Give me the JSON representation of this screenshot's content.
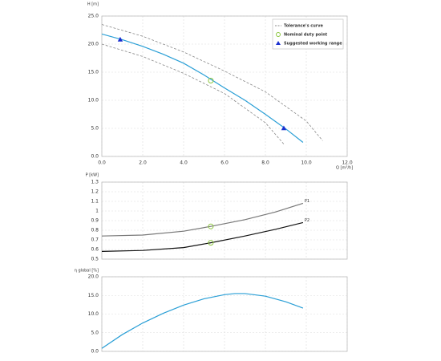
{
  "chart_data": [
    {
      "type": "line",
      "xlabel": "Q [m³/h]",
      "ylabel": "H [m]",
      "legend": "upper right",
      "grid": true,
      "xlim": [
        0,
        12
      ],
      "ylim": [
        0,
        25
      ],
      "xticks": [
        {
          "value": 0,
          "label": "0.0"
        },
        {
          "value": 2,
          "label": "2.0"
        },
        {
          "value": 4,
          "label": "4.0"
        },
        {
          "value": 6,
          "label": "6.0"
        },
        {
          "value": 8,
          "label": "8.0"
        },
        {
          "value": 10,
          "label": "10.0"
        },
        {
          "value": 12,
          "label": "12.0"
        }
      ],
      "yticks": [
        {
          "value": 0,
          "label": "0.0"
        },
        {
          "value": 5,
          "label": "5.0"
        },
        {
          "value": 10,
          "label": "10.0"
        },
        {
          "value": 15,
          "label": "15.0"
        },
        {
          "value": 20,
          "label": "20.0"
        },
        {
          "value": 25,
          "label": "25.0"
        }
      ],
      "series": [
        {
          "name": "Tolerance's curve",
          "color": "#888888",
          "style": "dashed",
          "x": [
            0,
            2,
            4,
            6,
            8,
            10,
            10.8
          ],
          "values": [
            23.5,
            21.4,
            18.6,
            15.2,
            11.5,
            6.3,
            2.8
          ]
        },
        {
          "color": "#888888",
          "style": "dashed",
          "x": [
            0,
            2,
            4,
            6,
            8,
            8.9
          ],
          "values": [
            20.0,
            17.8,
            14.8,
            11.2,
            6.0,
            2.2
          ]
        },
        {
          "color": "#2a9fd6",
          "style": "solid",
          "x": [
            0,
            1,
            2,
            3,
            4,
            5,
            6,
            7,
            8,
            9,
            9.84
          ],
          "values": [
            21.8,
            20.8,
            19.6,
            18.2,
            16.6,
            14.5,
            12.2,
            10.0,
            7.5,
            4.9,
            2.5
          ]
        },
        {
          "name": "Nominal duty point",
          "color": "#8cc63f",
          "style": "circle",
          "x": [
            5.33
          ],
          "values": [
            13.5
          ]
        },
        {
          "name": "Suggested working range",
          "color": "#1a2fcf",
          "style": "triangle",
          "x": [
            0.9,
            8.9
          ],
          "values": [
            20.8,
            5.0
          ]
        }
      ]
    },
    {
      "type": "line",
      "ylabel": "P [kW]",
      "grid": true,
      "xlim": [
        0,
        12
      ],
      "ylim": [
        0.5,
        1.3
      ],
      "yticks": [
        0.5,
        0.6,
        0.7,
        0.8,
        0.9,
        1.0,
        1.1,
        1.2,
        1.3
      ],
      "series": [
        {
          "name": "P1",
          "color": "#777777",
          "style": "solid",
          "x": [
            0,
            2,
            4,
            5.33,
            7,
            8.5,
            9.84
          ],
          "values": [
            0.74,
            0.75,
            0.79,
            0.84,
            0.91,
            0.99,
            1.08
          ]
        },
        {
          "name": "P2",
          "color": "#111111",
          "style": "solid",
          "x": [
            0,
            2,
            4,
            5.33,
            7,
            8.5,
            9.84
          ],
          "values": [
            0.58,
            0.59,
            0.62,
            0.67,
            0.74,
            0.81,
            0.88
          ]
        },
        {
          "color": "#8cc63f",
          "style": "circle",
          "x": [
            5.33,
            5.33
          ],
          "values": [
            0.84,
            0.67
          ]
        }
      ]
    },
    {
      "type": "line",
      "ylabel": "η global [%]",
      "grid": true,
      "xlim": [
        0,
        12
      ],
      "ylim": [
        0,
        20
      ],
      "yticks": [
        {
          "value": 0,
          "label": "0.0"
        },
        {
          "value": 5,
          "label": "5.0"
        },
        {
          "value": 10,
          "label": "10.0"
        },
        {
          "value": 15,
          "label": "15.0"
        },
        {
          "value": 20,
          "label": "20.0"
        }
      ],
      "series": [
        {
          "color": "#2a9fd6",
          "style": "solid",
          "x": [
            0,
            1,
            2,
            3,
            4,
            5,
            6,
            6.5,
            7,
            8,
            9,
            9.84
          ],
          "values": [
            0.8,
            4.5,
            7.6,
            10.2,
            12.4,
            14.1,
            15.2,
            15.5,
            15.5,
            14.8,
            13.3,
            11.6
          ]
        }
      ]
    }
  ]
}
